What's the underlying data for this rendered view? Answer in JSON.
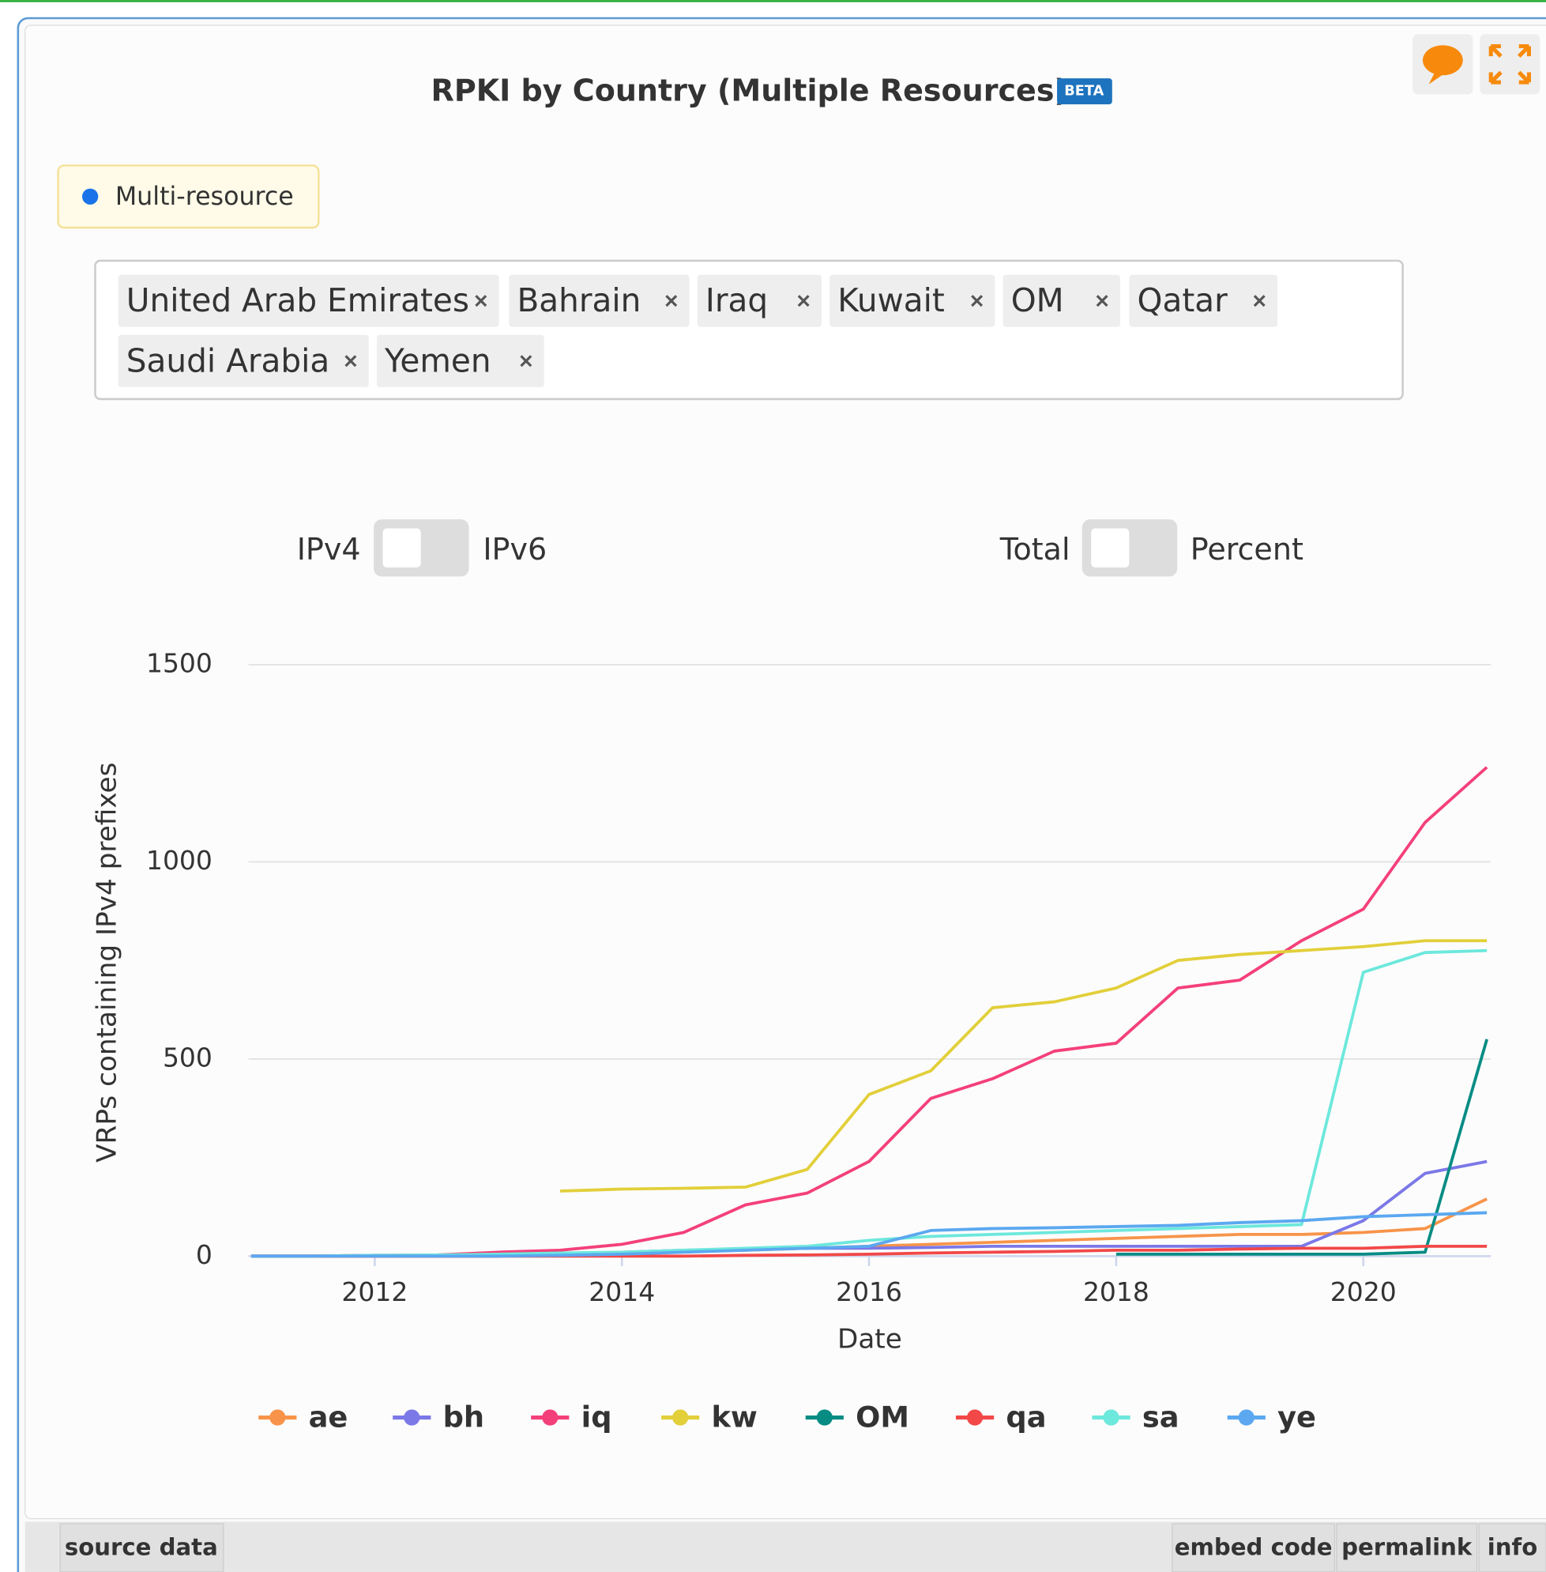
{
  "header": {
    "title": "RPKI by Country (Multiple Resources)",
    "badge": "BETA"
  },
  "legend_box": "Multi-resource",
  "countries": [
    "United Arab Emirates",
    "Bahrain",
    "Iraq",
    "Kuwait",
    "OM",
    "Qatar",
    "Saudi Arabia",
    "Yemen"
  ],
  "toggles": [
    {
      "left": "IPv4",
      "right": "IPv6"
    },
    {
      "left": "Total",
      "right": "Percent"
    }
  ],
  "chart_data": {
    "type": "line",
    "y_label": "VRPs containing IPv4 prefixes",
    "x_label": "Date",
    "x": [
      2011,
      2011.5,
      2012,
      2012.5,
      2013,
      2013.5,
      2014,
      2014.5,
      2015,
      2015.5,
      2016,
      2016.5,
      2017,
      2017.5,
      2018,
      2018.5,
      2019,
      2019.5,
      2020,
      2020.5,
      2021
    ],
    "xlim": [
      2011,
      2021
    ],
    "xticks": [
      2012,
      2014,
      2016,
      2018,
      2020
    ],
    "ylim": [
      0,
      1500
    ],
    "yticks": [
      0,
      500,
      1000,
      1500
    ],
    "grid": true,
    "series": [
      {
        "name": "ae",
        "color": "#f7944a",
        "values": [
          0,
          0,
          0,
          0,
          0,
          5,
          10,
          12,
          15,
          20,
          25,
          30,
          35,
          40,
          45,
          50,
          55,
          55,
          60,
          70,
          145
        ]
      },
      {
        "name": "bh",
        "color": "#7b78e8",
        "values": [
          0,
          0,
          0,
          0,
          0,
          2,
          10,
          15,
          18,
          20,
          20,
          22,
          25,
          25,
          25,
          25,
          25,
          25,
          90,
          210,
          240
        ]
      },
      {
        "name": "iq",
        "color": "#f4407a",
        "values": [
          0,
          0,
          2,
          3,
          10,
          15,
          30,
          60,
          130,
          160,
          240,
          400,
          450,
          520,
          540,
          680,
          700,
          800,
          880,
          1100,
          1240
        ]
      },
      {
        "name": "kw",
        "color": "#e2cf3a",
        "values": [
          null,
          null,
          null,
          null,
          null,
          165,
          170,
          172,
          175,
          220,
          410,
          470,
          630,
          645,
          680,
          750,
          765,
          775,
          785,
          800,
          800
        ]
      },
      {
        "name": "OM",
        "color": "#078c84",
        "values": [
          null,
          null,
          null,
          null,
          null,
          null,
          null,
          null,
          null,
          null,
          null,
          null,
          null,
          null,
          5,
          5,
          5,
          5,
          5,
          10,
          550
        ]
      },
      {
        "name": "qa",
        "color": "#f24848",
        "values": [
          0,
          0,
          0,
          0,
          0,
          0,
          0,
          0,
          2,
          3,
          5,
          8,
          10,
          12,
          15,
          15,
          18,
          20,
          20,
          25,
          25
        ]
      },
      {
        "name": "sa",
        "color": "#6de8dc",
        "values": [
          0,
          0,
          2,
          3,
          5,
          8,
          10,
          15,
          20,
          25,
          40,
          50,
          55,
          60,
          65,
          70,
          75,
          80,
          720,
          770,
          775
        ]
      },
      {
        "name": "ye",
        "color": "#5ba8f0",
        "values": [
          0,
          0,
          0,
          0,
          0,
          2,
          5,
          10,
          15,
          20,
          25,
          65,
          70,
          72,
          75,
          78,
          85,
          90,
          100,
          105,
          110
        ]
      }
    ]
  },
  "footer": {
    "left": [
      "source data"
    ],
    "right": [
      "embed code",
      "permalink",
      "info"
    ]
  }
}
